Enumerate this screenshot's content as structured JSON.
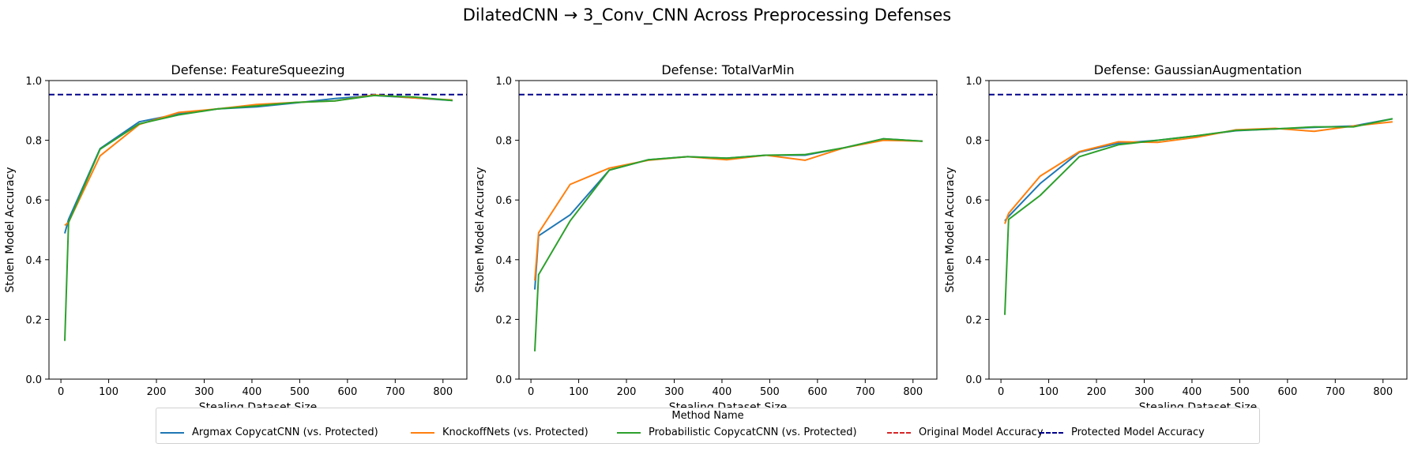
{
  "figure_title": "DilatedCNN → 3_Conv_CNN Across Preprocessing Defenses",
  "legend": {
    "title": "Method Name",
    "items": [
      {
        "label": "Argmax CopycatCNN (vs. Protected)",
        "color": "#1f77b4",
        "style": "solid"
      },
      {
        "label": "KnockoffNets (vs. Protected)",
        "color": "#ff7f0e",
        "style": "solid"
      },
      {
        "label": "Probabilistic CopycatCNN (vs. Protected)",
        "color": "#2ca02c",
        "style": "solid"
      },
      {
        "label": "Original Model Accuracy",
        "color": "#d62728",
        "style": "dashed"
      },
      {
        "label": "Protected Model Accuracy",
        "color": "#00008b",
        "style": "dashed"
      }
    ]
  },
  "chart_data": [
    {
      "type": "line",
      "title": "Defense: FeatureSqueezing",
      "xlabel": "Stealing Dataset Size",
      "ylabel": "Stolen Model Accuracy",
      "xlim": [
        -25,
        850
      ],
      "ylim": [
        0,
        1.0
      ],
      "xticks": [
        0,
        100,
        200,
        300,
        400,
        500,
        600,
        700,
        800
      ],
      "yticks": [
        0.0,
        0.2,
        0.4,
        0.6,
        0.8,
        1.0
      ],
      "hlines": [
        {
          "name": "Protected Model Accuracy",
          "y": 0.953
        }
      ],
      "series": [
        {
          "name": "Argmax CopycatCNN (vs. Protected)",
          "x": [
            8,
            16,
            82,
            164,
            246,
            328,
            410,
            492,
            574,
            656,
            738,
            820
          ],
          "y": [
            0.488,
            0.535,
            0.772,
            0.862,
            0.888,
            0.905,
            0.912,
            0.925,
            0.94,
            0.95,
            0.942,
            0.933
          ]
        },
        {
          "name": "KnockoffNets (vs. Protected)",
          "x": [
            8,
            16,
            82,
            164,
            246,
            328,
            410,
            492,
            574,
            656,
            738,
            820
          ],
          "y": [
            0.515,
            0.525,
            0.748,
            0.853,
            0.893,
            0.905,
            0.92,
            0.927,
            0.932,
            0.952,
            0.942,
            0.935
          ]
        },
        {
          "name": "Probabilistic CopycatCNN (vs. Protected)",
          "x": [
            8,
            16,
            82,
            164,
            246,
            328,
            410,
            492,
            574,
            656,
            738,
            820
          ],
          "y": [
            0.128,
            0.525,
            0.77,
            0.855,
            0.885,
            0.905,
            0.915,
            0.927,
            0.932,
            0.95,
            0.945,
            0.933
          ]
        }
      ]
    },
    {
      "type": "line",
      "title": "Defense: TotalVarMin",
      "xlabel": "Stealing Dataset Size",
      "ylabel": "Stolen Model Accuracy",
      "xlim": [
        -25,
        850
      ],
      "ylim": [
        0,
        1.0
      ],
      "xticks": [
        0,
        100,
        200,
        300,
        400,
        500,
        600,
        700,
        800
      ],
      "yticks": [
        0.0,
        0.2,
        0.4,
        0.6,
        0.8,
        1.0
      ],
      "hlines": [
        {
          "name": "Protected Model Accuracy",
          "y": 0.953
        }
      ],
      "series": [
        {
          "name": "Argmax CopycatCNN (vs. Protected)",
          "x": [
            8,
            16,
            82,
            164,
            246,
            328,
            410,
            492,
            574,
            656,
            738,
            820
          ],
          "y": [
            0.3,
            0.48,
            0.55,
            0.7,
            0.735,
            0.745,
            0.74,
            0.75,
            0.75,
            0.775,
            0.805,
            0.797
          ]
        },
        {
          "name": "KnockoffNets (vs. Protected)",
          "x": [
            8,
            16,
            82,
            164,
            246,
            328,
            410,
            492,
            574,
            656,
            738,
            820
          ],
          "y": [
            0.33,
            0.49,
            0.652,
            0.707,
            0.733,
            0.745,
            0.735,
            0.75,
            0.733,
            0.775,
            0.8,
            0.797
          ]
        },
        {
          "name": "Probabilistic CopycatCNN (vs. Protected)",
          "x": [
            8,
            16,
            82,
            164,
            246,
            328,
            410,
            492,
            574,
            656,
            738,
            820
          ],
          "y": [
            0.093,
            0.35,
            0.53,
            0.7,
            0.735,
            0.745,
            0.74,
            0.75,
            0.752,
            0.775,
            0.805,
            0.797
          ]
        }
      ]
    },
    {
      "type": "line",
      "title": "Defense: GaussianAugmentation",
      "xlabel": "Stealing Dataset Size",
      "ylabel": "Stolen Model Accuracy",
      "xlim": [
        -25,
        850
      ],
      "ylim": [
        0,
        1.0
      ],
      "xticks": [
        0,
        100,
        200,
        300,
        400,
        500,
        600,
        700,
        800
      ],
      "yticks": [
        0.0,
        0.2,
        0.4,
        0.6,
        0.8,
        1.0
      ],
      "hlines": [
        {
          "name": "Protected Model Accuracy",
          "y": 0.953
        }
      ],
      "series": [
        {
          "name": "Argmax CopycatCNN (vs. Protected)",
          "x": [
            8,
            16,
            82,
            164,
            246,
            328,
            410,
            492,
            574,
            656,
            738,
            820
          ],
          "y": [
            0.53,
            0.545,
            0.655,
            0.76,
            0.79,
            0.8,
            0.815,
            0.832,
            0.838,
            0.843,
            0.848,
            0.872
          ]
        },
        {
          "name": "KnockoffNets (vs. Protected)",
          "x": [
            8,
            16,
            82,
            164,
            246,
            328,
            410,
            492,
            574,
            656,
            738,
            820
          ],
          "y": [
            0.52,
            0.555,
            0.68,
            0.762,
            0.795,
            0.793,
            0.81,
            0.835,
            0.84,
            0.83,
            0.848,
            0.862
          ]
        },
        {
          "name": "Probabilistic CopycatCNN (vs. Protected)",
          "x": [
            8,
            16,
            82,
            164,
            246,
            328,
            410,
            492,
            574,
            656,
            738,
            820
          ],
          "y": [
            0.215,
            0.535,
            0.615,
            0.745,
            0.785,
            0.8,
            0.815,
            0.833,
            0.838,
            0.845,
            0.845,
            0.872
          ]
        }
      ]
    }
  ]
}
